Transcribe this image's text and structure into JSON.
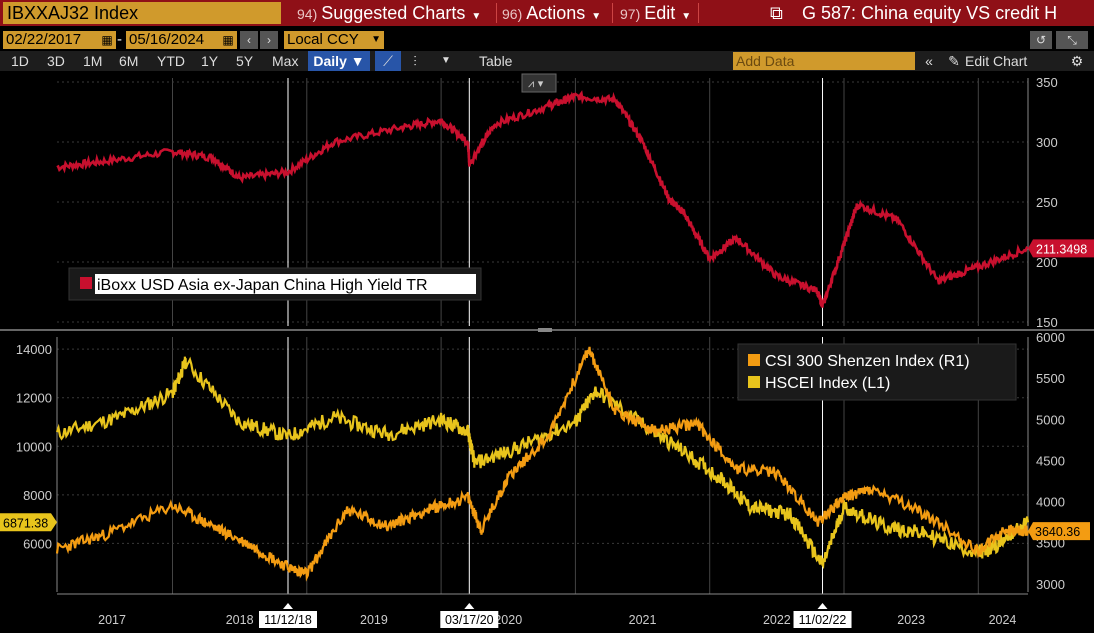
{
  "header": {
    "ticker": "IBXXAJ32 Index",
    "menu": [
      {
        "num": "94)",
        "label": "Suggested Charts"
      },
      {
        "num": "96)",
        "label": "Actions"
      },
      {
        "num": "97)",
        "label": "Edit"
      }
    ],
    "chart_title": "G 587: China equity VS credit H"
  },
  "toolbar": {
    "start_date": "02/22/2017",
    "end_date": "05/16/2024",
    "currency": "Local CCY",
    "ranges": [
      "1D",
      "3D",
      "1M",
      "6M",
      "YTD",
      "1Y",
      "5Y",
      "Max"
    ],
    "frequency": "Daily",
    "table_label": "Table",
    "add_data_placeholder": "Add Data",
    "edit_chart_label": "Edit Chart"
  },
  "colors": {
    "red": "#c8102e",
    "orange": "#f39c12",
    "yellow": "#e8c41c",
    "accent": "#d09a2c"
  },
  "chart_data": [
    {
      "type": "line",
      "title": "",
      "xlabel": "",
      "ylabel": "",
      "ylim": [
        150,
        350
      ],
      "yticks": [
        150,
        200,
        250,
        300,
        350
      ],
      "axis": "right",
      "legend_placement": "left",
      "last_value_label": "211.3498",
      "series": [
        {
          "name": "iBoxx USD Asia ex-Japan China High Yield TR",
          "color": "#c8102e",
          "x": [
            2017.14,
            2017.5,
            2018.0,
            2018.3,
            2018.5,
            2018.86,
            2019.2,
            2019.7,
            2020.0,
            2020.2,
            2020.21,
            2020.4,
            2020.8,
            2021.0,
            2021.3,
            2021.5,
            2021.7,
            2021.8,
            2022.0,
            2022.2,
            2022.5,
            2022.8,
            2022.84,
            2023.0,
            2023.1,
            2023.4,
            2023.7,
            2024.0,
            2024.37
          ],
          "values": [
            279,
            284,
            292,
            287,
            270,
            275,
            300,
            312,
            318,
            300,
            282,
            315,
            330,
            338,
            335,
            300,
            252,
            242,
            203,
            220,
            188,
            176,
            163,
            215,
            248,
            235,
            184,
            196,
            211.35
          ]
        }
      ]
    },
    {
      "type": "line",
      "title": "",
      "xlabel": "",
      "ylabel": "",
      "xticks": [
        "2017",
        "2018",
        "2019",
        "2020",
        "2021",
        "2022",
        "2023",
        "2024"
      ],
      "date_flags": [
        "11/12/18",
        "03/17/20",
        "11/02/22"
      ],
      "left_axis": {
        "ylim": [
          4000,
          14500
        ],
        "yticks": [
          6000,
          8000,
          10000,
          12000,
          14000
        ],
        "last_value_label": "6871.38"
      },
      "right_axis": {
        "ylim": [
          2900,
          6000
        ],
        "yticks": [
          3000,
          3500,
          4000,
          4500,
          5000,
          5500,
          6000
        ],
        "last_value_label": "3640.36"
      },
      "legend_placement": "top-right",
      "series": [
        {
          "name": "CSI 300 Shenzen Index  (R1)",
          "axis": "right",
          "color": "#f39c12",
          "x": [
            2017.14,
            2017.5,
            2018.0,
            2018.3,
            2018.6,
            2018.86,
            2019.0,
            2019.3,
            2019.6,
            2019.9,
            2020.2,
            2020.3,
            2020.5,
            2020.8,
            2021.1,
            2021.3,
            2021.6,
            2021.9,
            2022.2,
            2022.5,
            2022.8,
            2023.0,
            2023.2,
            2023.6,
            2024.0,
            2024.2,
            2024.37
          ],
          "values": [
            3420,
            3600,
            3950,
            3700,
            3450,
            3200,
            3120,
            3900,
            3700,
            3900,
            4050,
            3650,
            4300,
            4800,
            5850,
            5100,
            4850,
            4950,
            4400,
            4350,
            3750,
            4050,
            4150,
            3850,
            3400,
            3650,
            3640.36
          ]
        },
        {
          "name": "HSCEI Index (L1)",
          "axis": "left",
          "color": "#e8c41c",
          "x": [
            2017.14,
            2017.6,
            2018.0,
            2018.1,
            2018.5,
            2018.86,
            2019.2,
            2019.6,
            2020.0,
            2020.2,
            2020.25,
            2020.6,
            2021.0,
            2021.15,
            2021.5,
            2021.8,
            2022.1,
            2022.3,
            2022.6,
            2022.84,
            2023.0,
            2023.3,
            2023.6,
            2024.0,
            2024.1,
            2024.37
          ],
          "values": [
            10500,
            11200,
            12200,
            13500,
            11000,
            10400,
            11200,
            10500,
            11100,
            10600,
            9300,
            10000,
            11000,
            12300,
            10900,
            9800,
            8600,
            7500,
            7200,
            5100,
            7500,
            6700,
            6400,
            5600,
            5800,
            6871.38
          ]
        }
      ]
    }
  ]
}
